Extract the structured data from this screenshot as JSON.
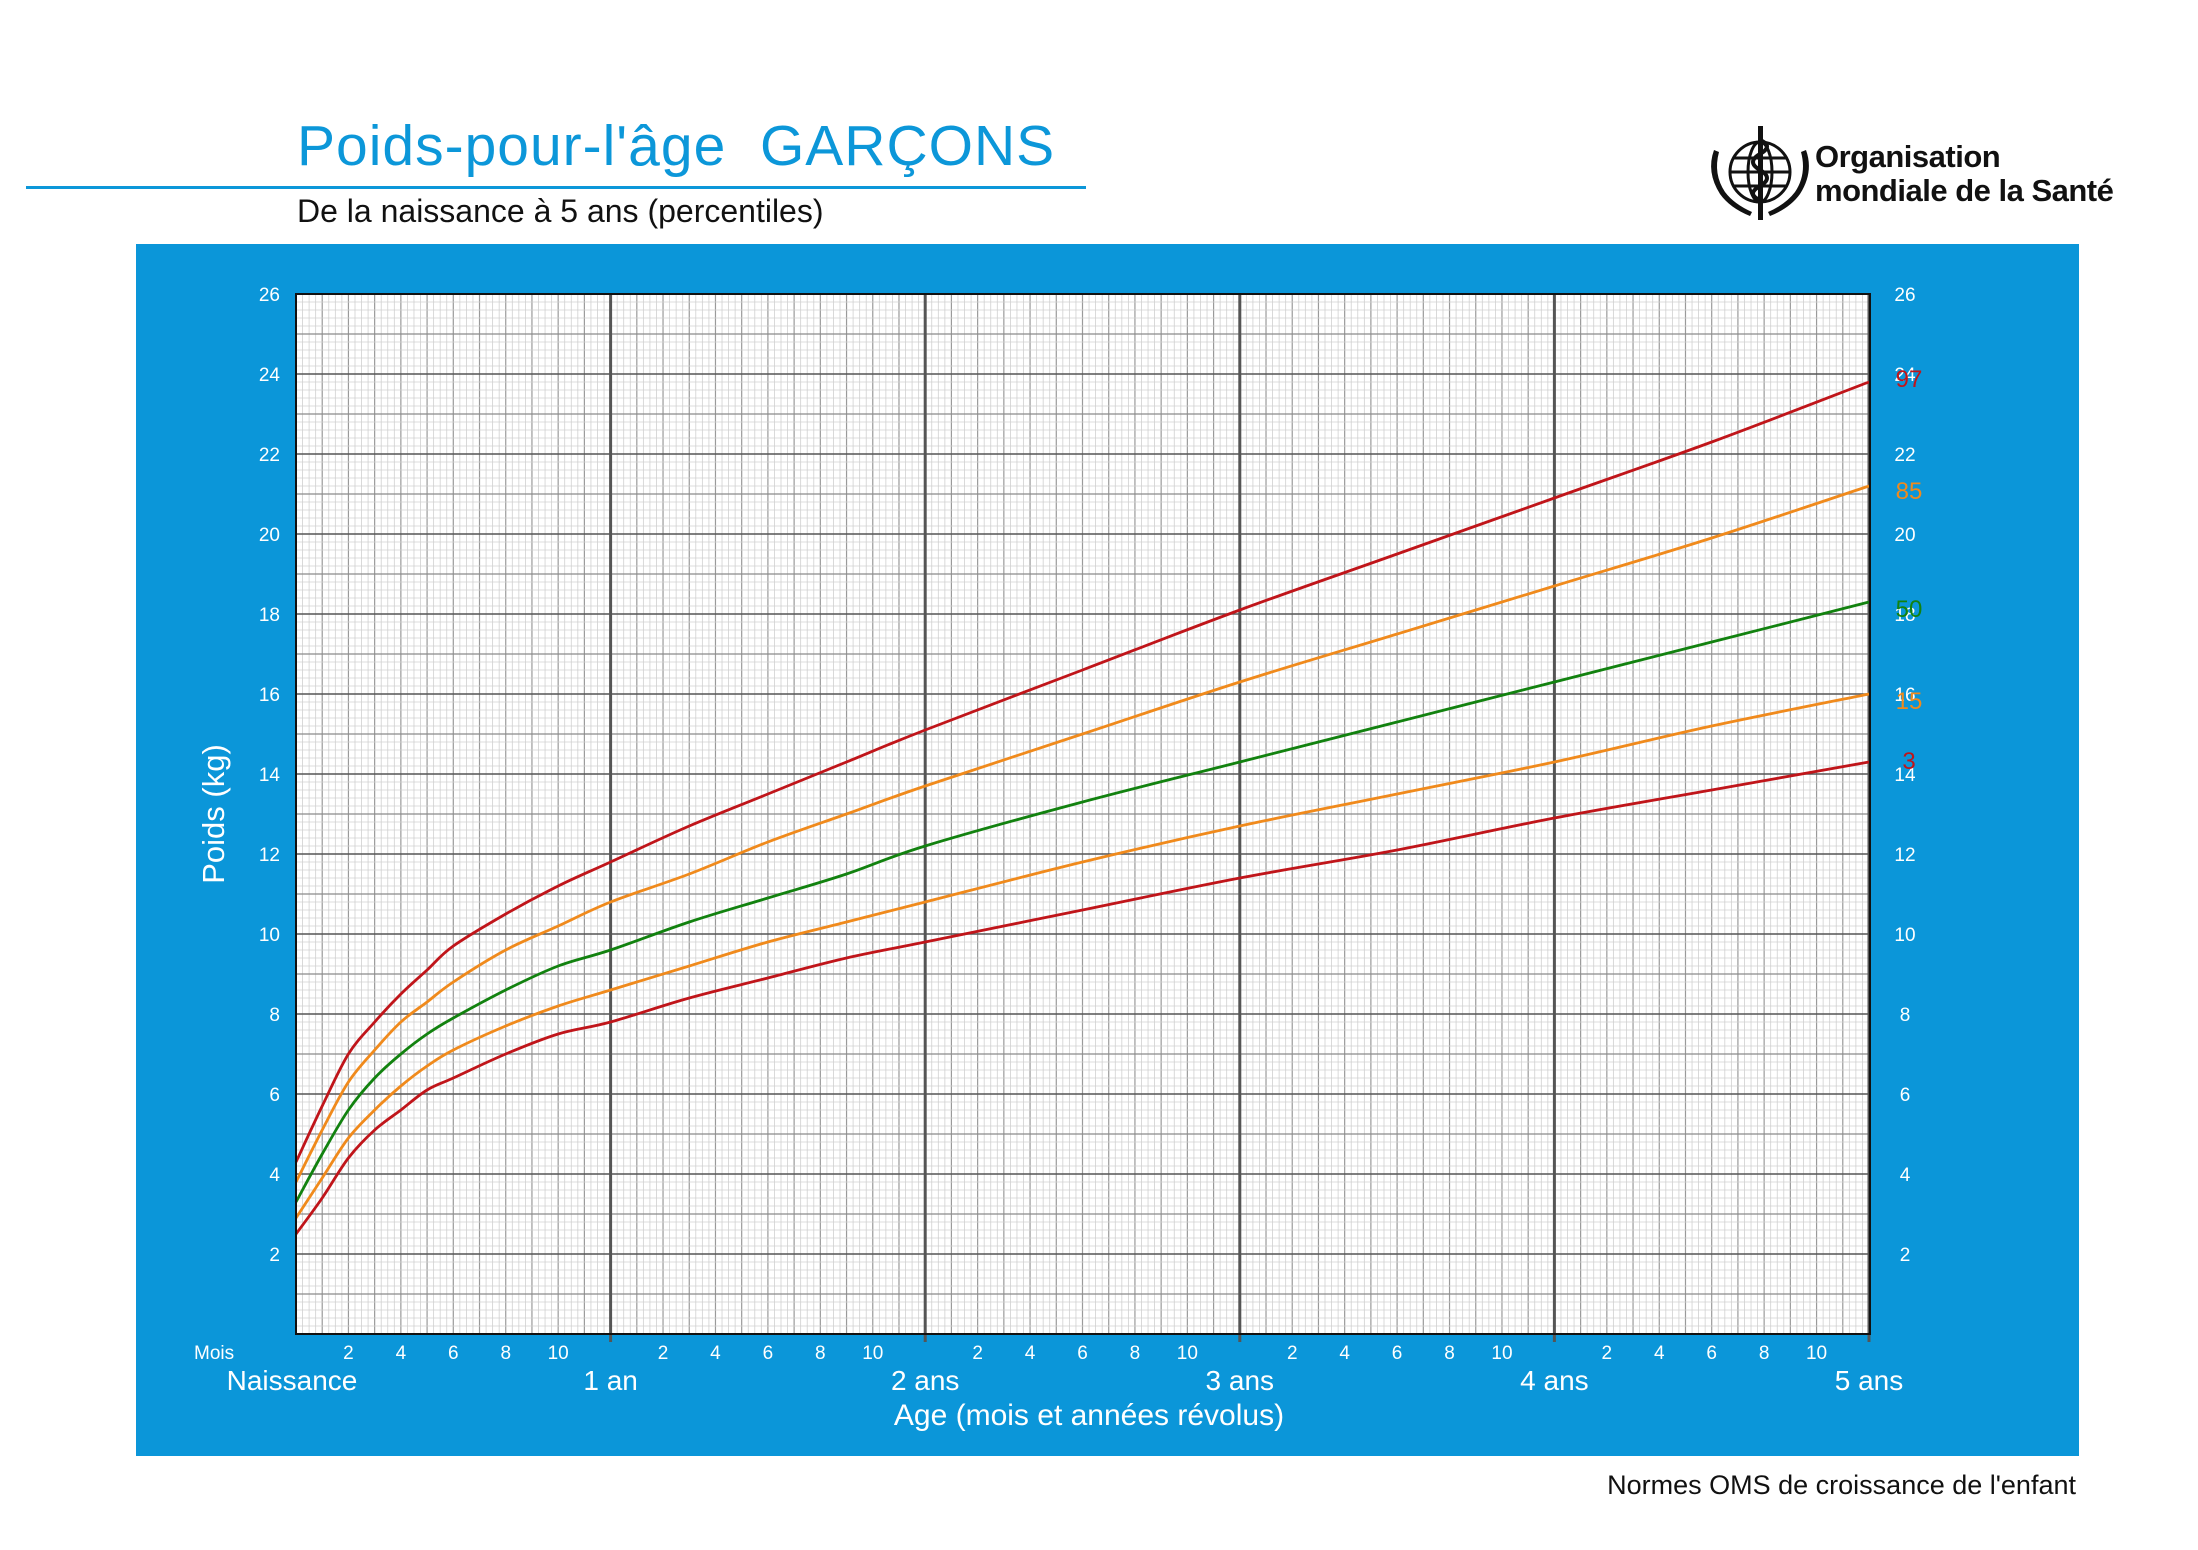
{
  "header": {
    "title": "Poids-pour-l'âge  GARÇONS",
    "subtitle": "De la naissance à 5 ans (percentiles)",
    "organization_line1": "Organisation",
    "organization_line2": "mondiale de la Santé",
    "logo_icon": "who-emblem-icon"
  },
  "footer": {
    "text": "Normes OMS de croissance de l'enfant"
  },
  "colors": {
    "panel": "#0b96d9",
    "title": "#0c97d9",
    "p3": "#c0151a",
    "p15": "#f08a1c",
    "p50": "#12820f",
    "p85": "#f08a1c",
    "p97": "#c0151a"
  },
  "chart_data": {
    "type": "line",
    "ylabel": "Poids (kg)",
    "xlabel": "Age (mois et années révolus)",
    "ylim": [
      0,
      26
    ],
    "xlim": [
      0,
      60
    ],
    "y_ticks": [
      2,
      4,
      6,
      8,
      10,
      12,
      14,
      16,
      18,
      20,
      22,
      24,
      26
    ],
    "x_month_prefix": "Mois",
    "x_month_ticks": [
      "2",
      "4",
      "6",
      "8",
      "10"
    ],
    "x_year_labels": [
      "Naissance",
      "1 an",
      "2 ans",
      "3 ans",
      "4 ans",
      "5 ans"
    ],
    "grid": true,
    "x": [
      0,
      1,
      2,
      3,
      4,
      5,
      6,
      8,
      10,
      12,
      15,
      18,
      21,
      24,
      30,
      36,
      42,
      48,
      54,
      60
    ],
    "series": [
      {
        "name": "3",
        "color": "#c0151a",
        "values": [
          2.5,
          3.4,
          4.4,
          5.1,
          5.6,
          6.1,
          6.4,
          7.0,
          7.5,
          7.8,
          8.4,
          8.9,
          9.4,
          9.8,
          10.6,
          11.4,
          12.1,
          12.9,
          13.6,
          14.3
        ]
      },
      {
        "name": "15",
        "color": "#f08a1c",
        "values": [
          2.9,
          3.9,
          4.9,
          5.6,
          6.2,
          6.7,
          7.1,
          7.7,
          8.2,
          8.6,
          9.2,
          9.8,
          10.3,
          10.8,
          11.8,
          12.7,
          13.5,
          14.3,
          15.2,
          16.0
        ]
      },
      {
        "name": "50",
        "color": "#12820f",
        "values": [
          3.3,
          4.5,
          5.6,
          6.4,
          7.0,
          7.5,
          7.9,
          8.6,
          9.2,
          9.6,
          10.3,
          10.9,
          11.5,
          12.2,
          13.3,
          14.3,
          15.3,
          16.3,
          17.3,
          18.3
        ]
      },
      {
        "name": "85",
        "color": "#f08a1c",
        "values": [
          3.8,
          5.1,
          6.3,
          7.1,
          7.8,
          8.3,
          8.8,
          9.6,
          10.2,
          10.8,
          11.5,
          12.3,
          13.0,
          13.7,
          15.0,
          16.3,
          17.5,
          18.7,
          19.9,
          21.2
        ]
      },
      {
        "name": "97",
        "color": "#c0151a",
        "values": [
          4.3,
          5.7,
          7.0,
          7.8,
          8.5,
          9.1,
          9.7,
          10.5,
          11.2,
          11.8,
          12.7,
          13.5,
          14.3,
          15.1,
          16.6,
          18.1,
          19.5,
          20.9,
          22.3,
          23.8
        ]
      }
    ]
  }
}
